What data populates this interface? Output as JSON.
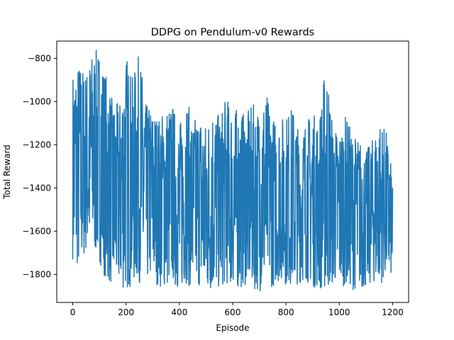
{
  "chart_data": {
    "type": "line",
    "title": "DDPG on Pendulum-v0 Rewards",
    "xlabel": "Episode",
    "ylabel": "Total Reward",
    "xlim": [
      -60,
      1260
    ],
    "ylim": [
      -1930,
      -720
    ],
    "xticks": [
      0,
      200,
      400,
      600,
      800,
      1000,
      1200
    ],
    "yticks": [
      -1800,
      -1600,
      -1400,
      -1200,
      -1000,
      -800
    ],
    "xtick_labels": [
      "0",
      "200",
      "400",
      "600",
      "800",
      "1000",
      "1200"
    ],
    "ytick_labels": [
      "−1800",
      "−1600",
      "−1400",
      "−1200",
      "−1000",
      "−800"
    ],
    "grid": false,
    "legend": false,
    "series": [
      {
        "color": "#1f77b4",
        "x": [
          0,
          25,
          50,
          75,
          100,
          125,
          150,
          175,
          200,
          225,
          250,
          275,
          300,
          325,
          350,
          375,
          400,
          425,
          450,
          475,
          500,
          525,
          550,
          575,
          600,
          625,
          650,
          675,
          700,
          725,
          750,
          775,
          800,
          825,
          850,
          875,
          900,
          925,
          950,
          975,
          1000,
          1025,
          1050,
          1075,
          1100,
          1125,
          1150,
          1175,
          1200
        ],
        "min": [
          -1730,
          -1800,
          -1700,
          -1700,
          -1740,
          -1830,
          -1860,
          -1870,
          -1880,
          -1850,
          -1840,
          -1840,
          -1830,
          -1860,
          -1870,
          -1840,
          -1890,
          -1840,
          -1880,
          -1860,
          -1910,
          -1880,
          -1870,
          -1850,
          -1860,
          -1870,
          -1850,
          -1870,
          -1880,
          -1850,
          -1860,
          -1830,
          -1850,
          -1860,
          -1840,
          -1830,
          -1860,
          -1870,
          -1890,
          -1850,
          -1860,
          -1850,
          -1870,
          -1870,
          -1870,
          -1840,
          -1850,
          -1820,
          -1810
        ],
        "max": [
          -860,
          -810,
          -860,
          -760,
          -760,
          -870,
          -1000,
          -1010,
          -770,
          -890,
          -770,
          -1010,
          -1030,
          -1070,
          -1020,
          -1010,
          -1110,
          -970,
          -1090,
          -1040,
          -1100,
          -1010,
          -1070,
          -980,
          -1020,
          -1040,
          -1060,
          -1010,
          -1030,
          -950,
          -1070,
          -1080,
          -1060,
          -1020,
          -1140,
          -1080,
          -1050,
          -1080,
          -800,
          -1100,
          -1140,
          -1060,
          -1150,
          -1170,
          -1230,
          -1170,
          -1080,
          -1130,
          -1340
        ]
      }
    ]
  }
}
